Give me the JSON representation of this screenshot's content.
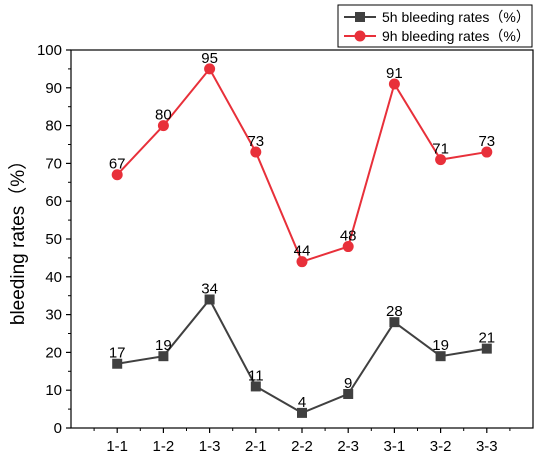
{
  "chart_data": {
    "type": "line",
    "xlabel": "",
    "ylabel": "bleeding rates（%）",
    "categories": [
      "1-1",
      "1-2",
      "1-3",
      "2-1",
      "2-2",
      "2-3",
      "3-1",
      "3-2",
      "3-3"
    ],
    "ylim": [
      0,
      100
    ],
    "yticks": [
      0,
      10,
      20,
      30,
      40,
      50,
      60,
      70,
      80,
      90,
      100
    ],
    "grid": false,
    "legend": "top-right",
    "series": [
      {
        "name": "5h bleeding rates（%）",
        "values": [
          17,
          19,
          34,
          11,
          4,
          9,
          28,
          19,
          21
        ],
        "color": "#404040",
        "marker": "square"
      },
      {
        "name": "9h bleeding rates（%）",
        "values": [
          67,
          80,
          95,
          73,
          44,
          48,
          91,
          71,
          73
        ],
        "color": "#e8303a",
        "marker": "circle"
      }
    ]
  }
}
